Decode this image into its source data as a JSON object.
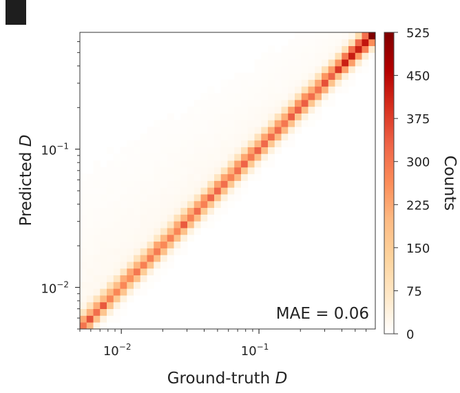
{
  "panel": {
    "label": ""
  },
  "chart_data": {
    "type": "heatmap",
    "subtype": "2d-histogram",
    "xlabel": "Ground-truth D",
    "ylabel": "Predicted D",
    "xscale": "log",
    "yscale": "log",
    "xlim": [
      0.005,
      0.7
    ],
    "ylim": [
      0.005,
      0.7
    ],
    "x_ticks": [
      {
        "value": 0.01,
        "base": "10",
        "exp": "−2"
      },
      {
        "value": 0.1,
        "base": "10",
        "exp": "−1"
      }
    ],
    "y_ticks": [
      {
        "value": 0.01,
        "base": "10",
        "exp": "−2"
      },
      {
        "value": 0.1,
        "base": "10",
        "exp": "−1"
      }
    ],
    "annotation": "MAE = 0.06",
    "colorbar": {
      "label": "Counts",
      "min": 0,
      "max": 525,
      "ticks": [
        "0",
        "75",
        "150",
        "225",
        "300",
        "375",
        "450",
        "525"
      ],
      "colormap": "OrRd",
      "color_stops": [
        "#ffffff",
        "#fee8c8",
        "#fdd49e",
        "#fdbb84",
        "#fc8d59",
        "#ef6548",
        "#d7301f",
        "#b30000",
        "#7f0000"
      ]
    },
    "diagonal_peak_counts": [
      {
        "x": 0.005,
        "count": 330
      },
      {
        "x": 0.007,
        "count": 300
      },
      {
        "x": 0.01,
        "count": 270
      },
      {
        "x": 0.02,
        "count": 285
      },
      {
        "x": 0.05,
        "count": 300
      },
      {
        "x": 0.1,
        "count": 300
      },
      {
        "x": 0.2,
        "count": 310
      },
      {
        "x": 0.4,
        "count": 340
      },
      {
        "x": 0.7,
        "count": 525
      }
    ]
  }
}
